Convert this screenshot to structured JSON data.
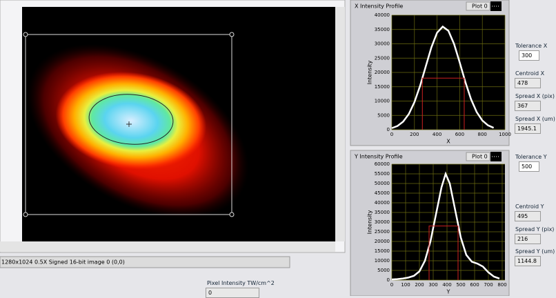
{
  "chart_data": [
    {
      "type": "line",
      "title": "X Intensity Profile",
      "x_label": "X",
      "y_label": "Intensity",
      "xlim": [
        0,
        1000
      ],
      "xticks": [
        0,
        200,
        400,
        600,
        800,
        1000
      ],
      "ylim": [
        0,
        40000
      ],
      "yticks": [
        0,
        5000,
        10000,
        15000,
        20000,
        25000,
        30000,
        35000,
        40000
      ],
      "grid": true,
      "grid_color": "#6b6b10",
      "background": "#000000",
      "series": [
        {
          "name": "Plot 0",
          "color": "#ffffff",
          "x": [
            0,
            50,
            100,
            150,
            200,
            250,
            300,
            350,
            400,
            450,
            500,
            550,
            600,
            650,
            700,
            750,
            800,
            850,
            900
          ],
          "values": [
            540,
            1290,
            2790,
            5450,
            9620,
            15340,
            22110,
            28790,
            33860,
            36000,
            34550,
            29980,
            23500,
            16650,
            10660,
            6160,
            3220,
            1520,
            650
          ]
        },
        {
          "color": "#d02020",
          "x": [
            270,
            270,
            640,
            640
          ],
          "values": [
            0,
            18000,
            18000,
            0
          ]
        }
      ]
    },
    {
      "type": "line",
      "title": "Y Intensity Profile",
      "x_label": "Y",
      "y_label": "Intensity",
      "xlim": [
        0,
        820
      ],
      "xticks": [
        0,
        100,
        200,
        300,
        400,
        500,
        600,
        700,
        800
      ],
      "ylim": [
        0,
        60000
      ],
      "yticks": [
        0,
        5000,
        10000,
        15000,
        20000,
        25000,
        30000,
        35000,
        40000,
        45000,
        50000,
        55000,
        60000
      ],
      "grid": true,
      "grid_color": "#6b6b10",
      "background": "#000000",
      "series": [
        {
          "name": "Plot 0",
          "color": "#ffffff",
          "x": [
            0,
            40,
            80,
            120,
            160,
            200,
            240,
            280,
            320,
            360,
            390,
            420,
            460,
            500,
            540,
            580,
            620,
            660,
            700,
            740,
            780
          ],
          "values": [
            300,
            500,
            800,
            1300,
            2200,
            4500,
            10000,
            20000,
            34000,
            48000,
            55000,
            50000,
            36000,
            22000,
            13000,
            9500,
            8500,
            7000,
            4000,
            1800,
            800
          ]
        },
        {
          "color": "#d02020",
          "x": [
            270,
            270,
            480,
            480
          ],
          "values": [
            0,
            28000,
            28000,
            0
          ]
        }
      ]
    }
  ],
  "controls": [
    {
      "label": "Tolerance X",
      "value": 300
    },
    {
      "label": "Centroid X",
      "value": 478
    },
    {
      "label": "Spread X (pix)",
      "value": 367
    },
    {
      "label": "Spread X (um)",
      "value": 1945.1
    },
    {
      "label": "Tolerance Y",
      "value": 500
    },
    {
      "label": "Centroid Y",
      "value": 495
    },
    {
      "label": "Spread Y (pix)",
      "value": 216
    },
    {
      "label": "Spread Y (um)",
      "value": 1144.8
    }
  ],
  "image_panel": {
    "status": "1280x1024 0.5X Signed 16-bit image 0   (0,0)",
    "pixel_label": "Pixel Intensity TW/cm^2",
    "pixel_value": 0
  }
}
